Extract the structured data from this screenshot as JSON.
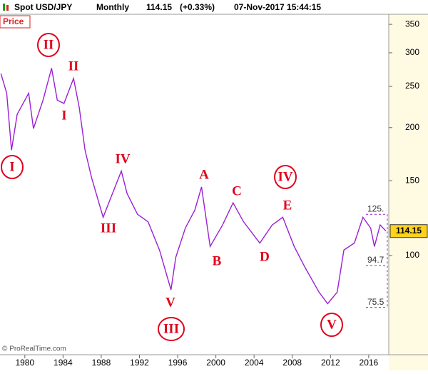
{
  "header": {
    "title": "Spot USD/JPY",
    "period": "Monthly",
    "last": 114.15,
    "change": "(+0.33%)",
    "datetime": "07-Nov-2017 15:44:15"
  },
  "panel_label": "Price",
  "copyright": "© ProRealTime.com",
  "chart_data": {
    "type": "line",
    "log": true,
    "color": "#9b1fd6",
    "x": [
      1977.5,
      1978.1,
      1978.6,
      1979.2,
      1980.4,
      1980.9,
      1981.9,
      1982.8,
      1983.4,
      1984.1,
      1985.1,
      1985.7,
      1986.3,
      1987.0,
      1988.2,
      1988.9,
      1990.1,
      1990.7,
      1991.8,
      1992.9,
      1994.1,
      1995.3,
      1995.8,
      1996.8,
      1997.8,
      1998.5,
      1999.4,
      2000.7,
      2001.8,
      2002.9,
      2004.6,
      2005.9,
      2007.0,
      2008.2,
      2009.3,
      2010.8,
      2011.7,
      2012.7,
      2013.4,
      2014.5,
      2015.4,
      2016.2,
      2016.6,
      2017.2,
      2017.8
    ],
    "values": [
      268,
      241,
      177,
      215,
      241,
      199,
      232,
      276,
      232,
      228,
      261,
      223,
      177,
      152,
      123,
      135,
      158,
      140,
      125,
      120,
      103,
      83,
      99,
      116,
      128,
      145,
      105,
      118,
      133,
      120,
      107,
      118,
      123,
      105,
      94,
      82,
      77,
      82,
      103,
      107,
      123,
      116,
      105,
      118,
      114.15
    ],
    "xlim": [
      1977.4,
      2018.1
    ],
    "xticks": [
      1980,
      1984,
      1988,
      1992,
      1996,
      2000,
      2004,
      2008,
      2012,
      2016
    ],
    "ylim": [
      58.4,
      369.6
    ],
    "yticks": [
      100,
      150,
      200,
      250,
      300,
      350
    ],
    "levels": [
      {
        "value": 125,
        "label": "125."
      },
      94.7,
      75.5
    ],
    "annotations": [
      {
        "text": "II",
        "circled": true
      },
      {
        "text": "II",
        "circled": false
      },
      {
        "text": "I",
        "circled": false
      },
      {
        "text": "I",
        "circled": true
      },
      {
        "text": "IV",
        "circled": false
      },
      {
        "text": "III",
        "circled": false
      },
      {
        "text": "V",
        "circled": false
      },
      {
        "text": "III",
        "circled": true
      },
      {
        "text": "A",
        "circled": false
      },
      {
        "text": "B",
        "circled": false
      },
      {
        "text": "C",
        "circled": false
      },
      {
        "text": "D",
        "circled": false
      },
      {
        "text": "IV",
        "circled": true
      },
      {
        "text": "E",
        "circled": false
      },
      {
        "text": "V",
        "circled": true
      }
    ]
  }
}
